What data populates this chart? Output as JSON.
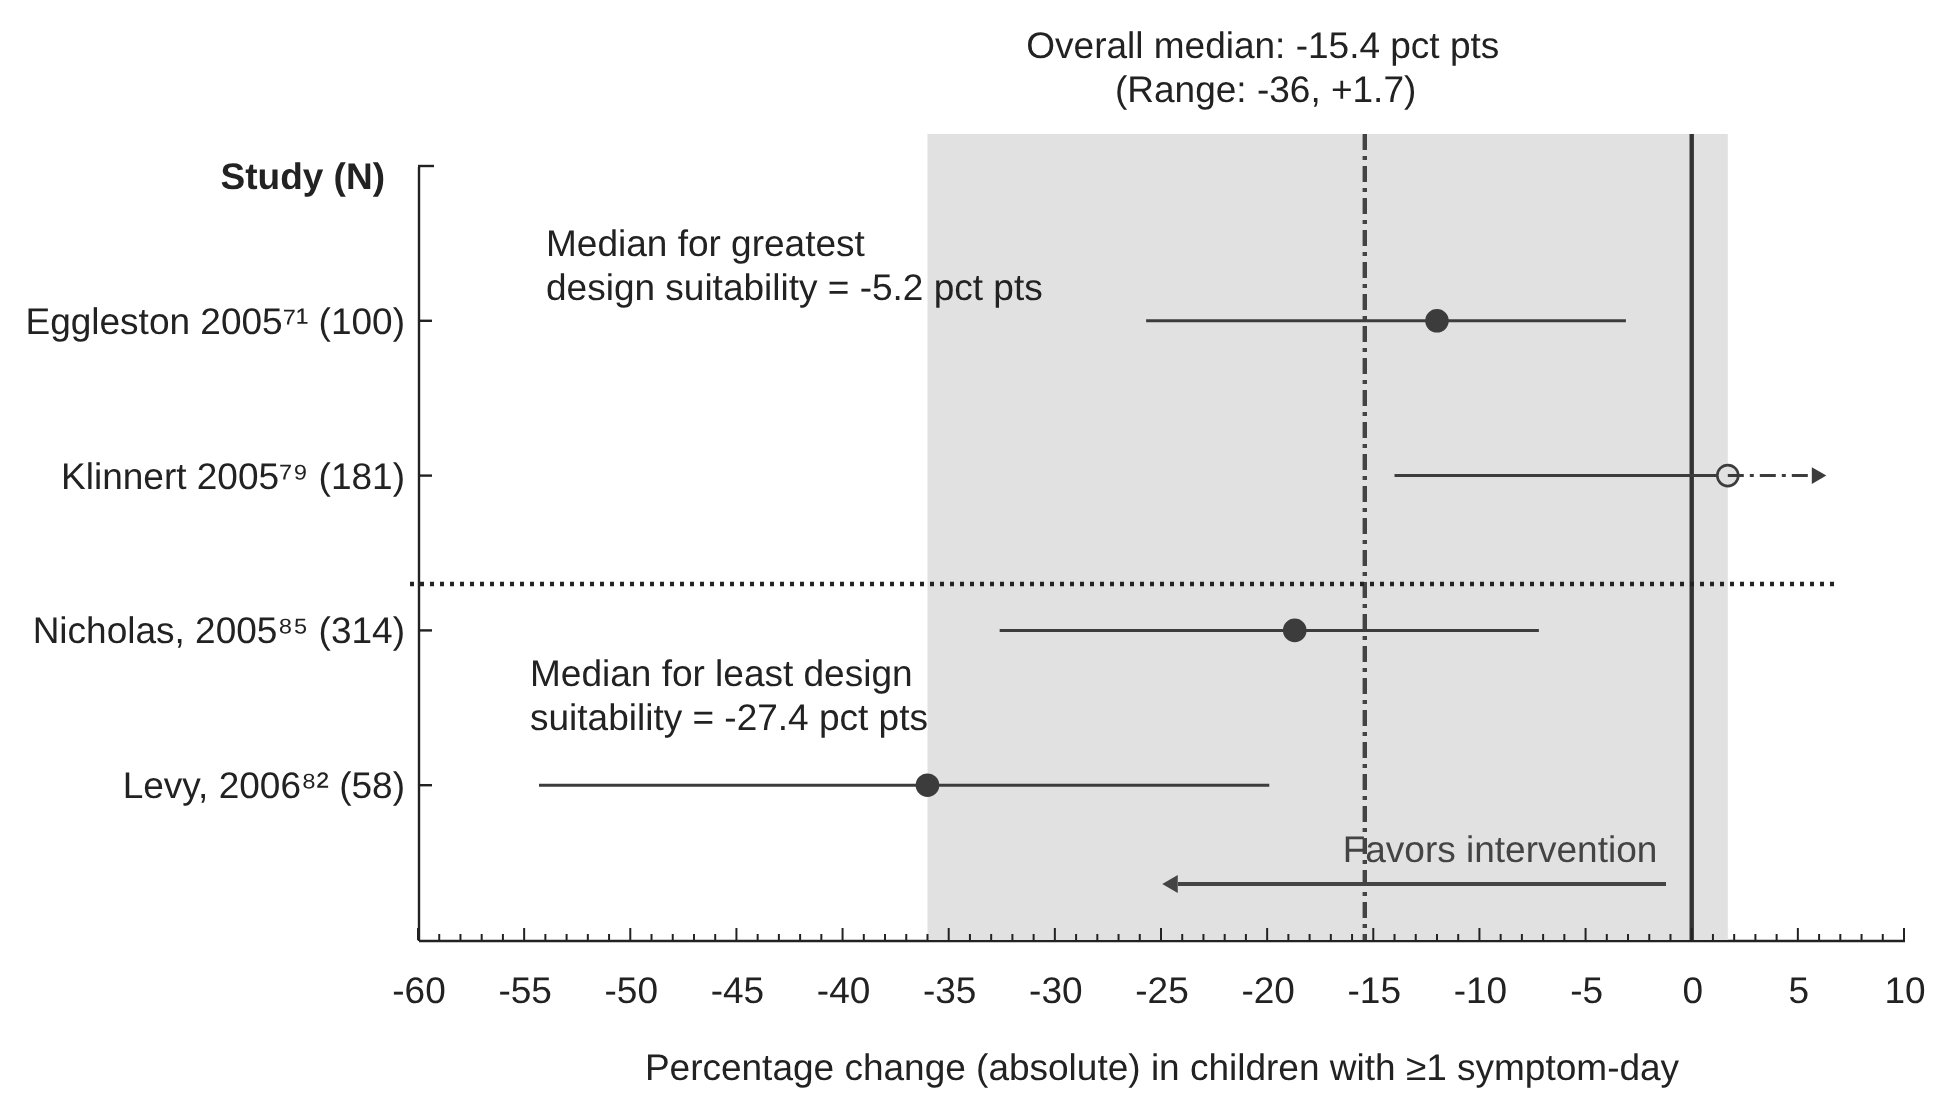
{
  "chart_data": {
    "type": "scatter",
    "orientation": "horizontal",
    "xlabel": "Percentage change (absolute) in children with ≥1 symptom-day",
    "ylabel": "Study (N)",
    "annotations": [
      "Median for greatest\ndesign suitability = -5.2 pct pts",
      "Median for least design\nsuitability = -27.4 pct pts",
      "Favors intervention"
    ],
    "categories": [
      "Eggleston 2005⁷¹ (100)",
      "Klinnert 2005⁷⁹ (181)",
      "Nicholas, 2005⁸⁵ (314)",
      "Levy, 2006⁸² (58)"
    ],
    "series": [
      {
        "marker": "circle",
        "color": "#3c3c3c",
        "colors": [
          "#3c3c3c",
          "#e1e1e1",
          "#3c3c3c",
          "#3c3c3c"
        ],
        "values": [
          -12.0,
          1.7,
          -18.7,
          -36.0
        ],
        "errors": [
          [
            -25.7,
            -3.1
          ],
          [
            -14.0,
            1.7
          ],
          [
            -32.6,
            -7.2
          ],
          [
            -54.3,
            -19.9
          ]
        ]
      },
      {
        "type": "line",
        "line_style": "dashed",
        "color": "#3c3c3c",
        "x": [
          "Klinnert 2005⁷⁹ (181)",
          "Klinnert 2005⁷⁹ (181)"
        ],
        "values": [
          1.7,
          6.0
        ]
      }
    ],
    "xlim": [
      -60,
      10
    ],
    "xticks": [
      -60,
      {
        "value": -59,
        "label": null
      },
      {
        "value": -58,
        "label": null
      },
      {
        "value": -57,
        "label": null
      },
      {
        "value": -56,
        "label": null
      },
      -55,
      {
        "value": -54,
        "label": null
      },
      {
        "value": -53,
        "label": null
      },
      {
        "value": -52,
        "label": null
      },
      {
        "value": -51,
        "label": null
      },
      -50,
      {
        "value": -49,
        "label": null
      },
      {
        "value": -48,
        "label": null
      },
      {
        "value": -47,
        "label": null
      },
      {
        "value": -46,
        "label": null
      },
      -45,
      {
        "value": -44,
        "label": null
      },
      {
        "value": -43,
        "label": null
      },
      {
        "value": -42,
        "label": null
      },
      {
        "value": -41,
        "label": null
      },
      -40,
      {
        "value": -39,
        "label": null
      },
      {
        "value": -38,
        "label": null
      },
      {
        "value": -37,
        "label": null
      },
      {
        "value": -36,
        "label": null
      },
      -35,
      {
        "value": -34,
        "label": null
      },
      {
        "value": -33,
        "label": null
      },
      {
        "value": -32,
        "label": null
      },
      {
        "value": -31,
        "label": null
      },
      -30,
      {
        "value": -29,
        "label": null
      },
      {
        "value": -28,
        "label": null
      },
      {
        "value": -27,
        "label": null
      },
      {
        "value": -26,
        "label": null
      },
      -25,
      {
        "value": -24,
        "label": null
      },
      {
        "value": -23,
        "label": null
      },
      {
        "value": -22,
        "label": null
      },
      {
        "value": -21,
        "label": null
      },
      -20,
      {
        "value": -19,
        "label": null
      },
      {
        "value": -18,
        "label": null
      },
      {
        "value": -17,
        "label": null
      },
      {
        "value": -16,
        "label": null
      },
      -15,
      {
        "value": -14,
        "label": null
      },
      {
        "value": -13,
        "label": null
      },
      {
        "value": -12,
        "label": null
      },
      {
        "value": -11,
        "label": null
      },
      -10,
      {
        "value": -9,
        "label": null
      },
      {
        "value": -8,
        "label": null
      },
      {
        "value": -7,
        "label": null
      },
      {
        "value": -6,
        "label": null
      },
      -5,
      {
        "value": -4,
        "label": null
      },
      {
        "value": -3,
        "label": null
      },
      {
        "value": -2,
        "label": null
      },
      {
        "value": -1,
        "label": null
      },
      0,
      {
        "value": 1,
        "label": null
      },
      {
        "value": 2,
        "label": null
      },
      {
        "value": 3,
        "label": null
      },
      {
        "value": 4,
        "label": null
      },
      5,
      {
        "value": 6,
        "label": null
      },
      {
        "value": 7,
        "label": null
      },
      {
        "value": 8,
        "label": null
      },
      {
        "value": 9,
        "label": null
      },
      10
    ],
    "ref_lines": [
      {
        "axis": "x",
        "value": -15.4,
        "label": "Overall median: -15.4 pct pts",
        "line_style": "dashed",
        "color": "#444444"
      },
      {
        "axis": "x",
        "value": 0,
        "line_style": "solid",
        "color": "#333333"
      },
      {
        "axis": "y",
        "value": "Nicholas, 2005⁸⁵ (314)",
        "line_style": "dotted",
        "color": "#222222"
      }
    ],
    "bands": [
      {
        "axis": "x",
        "from": -36,
        "to": 1.7,
        "label": "(Range: -36, +1.7)",
        "color": "#e1e1e1"
      }
    ]
  }
}
